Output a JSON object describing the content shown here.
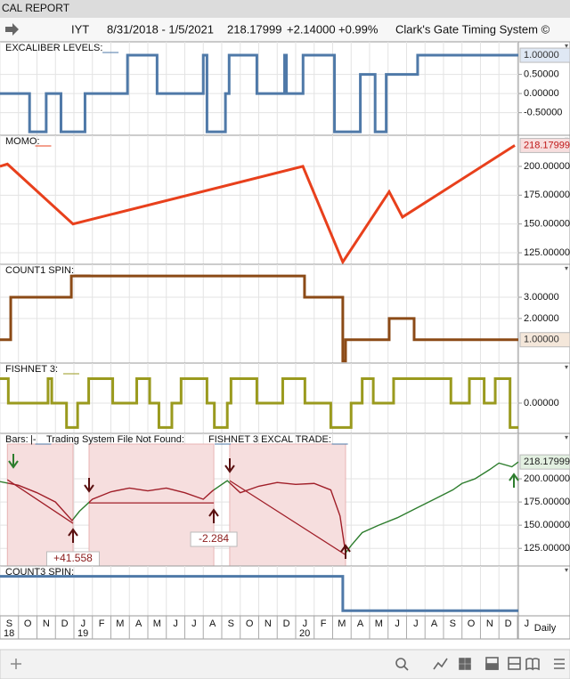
{
  "window_title": "CAL REPORT",
  "toolbar": {
    "symbol": "IYT",
    "range": "8/31/2018 - 1/5/2021",
    "price": "218.17999",
    "change": "+2.14000",
    "change_pct": "+0.99%",
    "system": "Clark's Gate Timing System ©"
  },
  "x_axis": {
    "xlim": [
      0,
      28.05
    ],
    "xticks": [
      {
        "value": 0,
        "label": "S"
      },
      {
        "value": 1,
        "label": "O"
      },
      {
        "value": 2,
        "label": "N"
      },
      {
        "value": 3,
        "label": "D"
      },
      {
        "value": 4,
        "label": "J"
      },
      {
        "value": 5,
        "label": "F"
      },
      {
        "value": 6,
        "label": "M"
      },
      {
        "value": 7,
        "label": "A"
      },
      {
        "value": 8,
        "label": "M"
      },
      {
        "value": 9,
        "label": "J"
      },
      {
        "value": 10,
        "label": "J"
      },
      {
        "value": 11,
        "label": "A"
      },
      {
        "value": 12,
        "label": "S"
      },
      {
        "value": 13,
        "label": "O"
      },
      {
        "value": 14,
        "label": "N"
      },
      {
        "value": 15,
        "label": "D"
      },
      {
        "value": 16,
        "label": "J"
      },
      {
        "value": 17,
        "label": "F"
      },
      {
        "value": 18,
        "label": "M"
      },
      {
        "value": 19,
        "label": "A"
      },
      {
        "value": 20,
        "label": "M"
      },
      {
        "value": 21,
        "label": "J"
      },
      {
        "value": 22,
        "label": "J"
      },
      {
        "value": 23,
        "label": "A"
      },
      {
        "value": 24,
        "label": "S"
      },
      {
        "value": 25,
        "label": "O"
      },
      {
        "value": 26,
        "label": "N"
      },
      {
        "value": 27,
        "label": "D"
      },
      {
        "value": 28,
        "label": "J"
      }
    ],
    "years": [
      {
        "value": 0,
        "label": "18"
      },
      {
        "value": 4,
        "label": "19"
      },
      {
        "value": 16,
        "label": "20"
      }
    ],
    "interval": "Daily"
  },
  "chart_data": [
    {
      "type": "line",
      "step": true,
      "ylim": [
        -1.09,
        1.35
      ],
      "yticks": [
        {
          "value": 0.5,
          "label": "0.50000"
        },
        {
          "value": 0,
          "label": "0.00000"
        },
        {
          "value": -0.5,
          "label": "-0.50000"
        }
      ],
      "last_label": "1.00000",
      "last_bg": "#dfe8f4",
      "last_fg": "#333333",
      "series": [
        {
          "name": "EXCALIBER LEVELS:",
          "color": "#4f79a8",
          "x": [
            0,
            1.6,
            2.5,
            3.3,
            4.6,
            6.9,
            8.5,
            11.0,
            11.2,
            12.2,
            12.4,
            13.9,
            15.4,
            15.5,
            16.4,
            18.1,
            19.5,
            20.3,
            20.9,
            22.6,
            28.05
          ],
          "values": [
            0,
            -1,
            0,
            -1,
            0,
            1,
            0,
            1,
            -1,
            0,
            1,
            0,
            1,
            0,
            1,
            -1,
            0.5,
            -1,
            0.5,
            1,
            1
          ]
        }
      ]
    },
    {
      "type": "line",
      "step": false,
      "ylim": [
        115,
        227
      ],
      "yticks": [
        {
          "value": 200,
          "label": "200.00000"
        },
        {
          "value": 175,
          "label": "175.00000"
        },
        {
          "value": 150,
          "label": "150.00000"
        },
        {
          "value": 125,
          "label": "125.00000"
        }
      ],
      "last_label": "218.17999",
      "last_bg": "#f7dede",
      "last_fg": "#c01818",
      "series": [
        {
          "name": "MOMO:",
          "color": "#e8401c",
          "x": [
            0,
            0.4,
            3.95,
            16.39,
            18.55,
            21.06,
            21.78,
            27.86
          ],
          "values": [
            200,
            202,
            150,
            200,
            117,
            178,
            156,
            218.18
          ]
        }
      ]
    },
    {
      "type": "line",
      "step": true,
      "ylim": [
        -0.1,
        4.55
      ],
      "yticks": [
        {
          "value": 3,
          "label": "3.00000"
        },
        {
          "value": 2,
          "label": "2.00000"
        }
      ],
      "last_label": "1.00000",
      "last_bg": "#f4e7da",
      "last_fg": "#333333",
      "series": [
        {
          "name": "COUNT1 SPIN:",
          "color": "#8b4a16",
          "x": [
            0,
            0.58,
            3.86,
            16.48,
            18.55,
            18.7,
            21.06,
            22.41,
            28.05
          ],
          "values": [
            1,
            3,
            4,
            3,
            0,
            1,
            2,
            1,
            1
          ]
        }
      ]
    },
    {
      "type": "line",
      "step": true,
      "ylim": [
        -1.24,
        1.64
      ],
      "yticks": [
        {
          "value": 0,
          "label": "0.00000"
        }
      ],
      "series": [
        {
          "name": "FISHNET 3:",
          "color": "#9a9a1e",
          "x": [
            0,
            0.45,
            2.6,
            2.8,
            3.6,
            4.2,
            4.8,
            6.1,
            7.4,
            8.1,
            8.6,
            9.3,
            9.8,
            11.2,
            11.6,
            12.3,
            12.5,
            13.9,
            15.3,
            16.5,
            17.9,
            19.0,
            19.6,
            20.2,
            21.3,
            24.4,
            25.4,
            26.2,
            26.8,
            27.6,
            28.05
          ],
          "values": [
            1,
            0,
            1,
            0,
            -1,
            0,
            1,
            0,
            1,
            0,
            -1,
            0,
            1,
            0,
            -1,
            0,
            1,
            0,
            1,
            0,
            -1,
            0,
            1,
            0,
            1,
            0,
            1,
            0,
            1,
            -1,
            -1
          ]
        }
      ]
    },
    {
      "type": "price",
      "ylim": [
        106,
        249
      ],
      "yticks": [
        {
          "value": 200,
          "label": "200.00000"
        },
        {
          "value": 175,
          "label": "175.00000"
        },
        {
          "value": 150,
          "label": "150.00000"
        },
        {
          "value": 125,
          "label": "125.00000"
        }
      ],
      "last_label": "218.17999",
      "last_bg": "#e3f0e1",
      "last_fg": "#222222",
      "legend_extra": [
        "Trading System File Not Found:",
        "FISHNET 3 EXCAL TRADE:"
      ],
      "trade_color": "#a01e28",
      "trades": [
        {
          "x": [
            0.4,
            3.95
          ],
          "values": [
            199,
            152
          ],
          "label": "+41.558"
        },
        {
          "x": [
            4.82,
            11.57
          ],
          "values": [
            174,
            174
          ],
          "label": "-2.284"
        },
        {
          "x": [
            12.43,
            18.7
          ],
          "values": [
            198,
            118
          ]
        }
      ],
      "series": [
        {
          "name": "Bars:",
          "color": "#2d7d2d",
          "x": [
            0,
            1,
            2,
            3,
            3.9,
            4.3,
            5,
            6,
            7,
            8,
            9,
            10,
            11,
            11.5,
            12.3,
            13,
            14,
            15,
            16,
            17,
            17.9,
            18.4,
            18.7,
            19,
            19.6,
            20.5,
            21.5,
            22.5,
            23.5,
            24.5,
            25,
            25.7,
            26.5,
            27,
            27.7,
            28.05
          ],
          "values": [
            197,
            193,
            185,
            175,
            155,
            165,
            178,
            186,
            190,
            187,
            190,
            185,
            178,
            187,
            198,
            185,
            192,
            196,
            194,
            195,
            188,
            160,
            120,
            128,
            142,
            150,
            158,
            168,
            178,
            188,
            195,
            200,
            210,
            217,
            213,
            218.18
          ]
        }
      ]
    },
    {
      "type": "line",
      "step": true,
      "ylim": [
        -0.15,
        1.3
      ],
      "yticks": [],
      "series": [
        {
          "name": "COUNT3 SPIN:",
          "color": "#4f79a8",
          "x": [
            0,
            18.55,
            28.05
          ],
          "values": [
            1,
            0,
            0
          ]
        }
      ]
    }
  ]
}
